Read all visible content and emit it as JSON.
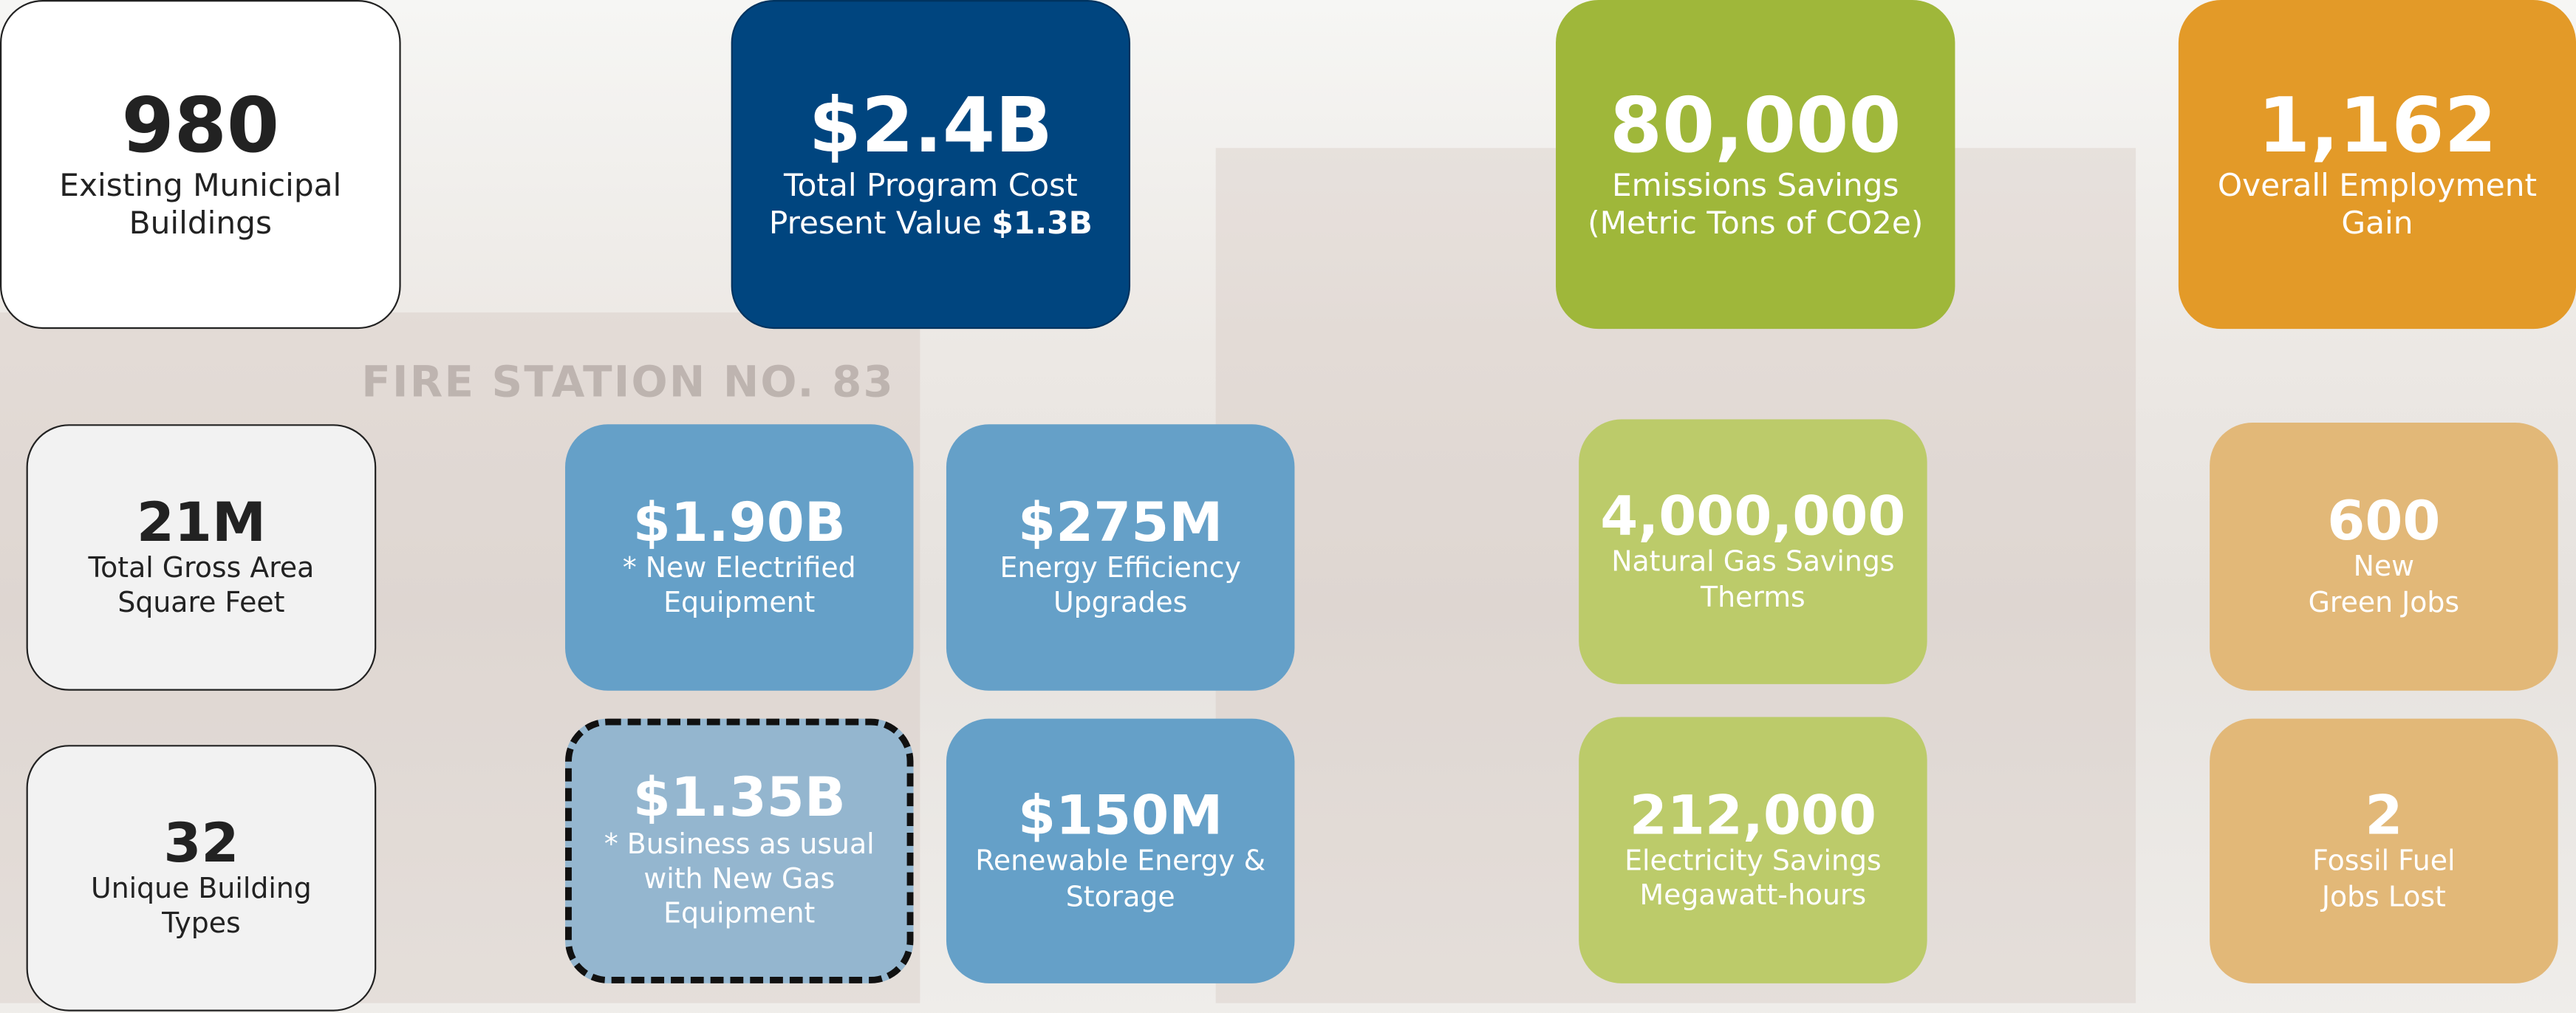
{
  "background": {
    "sign": "FIRE STATION NO. 83"
  },
  "cards": [
    {
      "value": "980",
      "label": [
        "Existing Municipal",
        "Buildings"
      ]
    },
    {
      "value": "$2.4B",
      "label": [
        "Total Program Cost",
        "Present Value"
      ],
      "label_emphasis": "$1.3B"
    },
    {
      "value": "80,000",
      "label": [
        "Emissions Savings",
        "(Metric Tons of CO2e)"
      ]
    },
    {
      "value": "1,162",
      "label": [
        "Overall Employment",
        "Gain"
      ]
    },
    {
      "value": "21M",
      "label": [
        "Total Gross Area",
        "Square Feet"
      ]
    },
    {
      "value": "$1.90B",
      "label": [
        "* New Electrified",
        "Equipment"
      ]
    },
    {
      "value": "$275M",
      "label": [
        "Energy Efficiency",
        "Upgrades"
      ]
    },
    {
      "value": "4,000,000",
      "label": [
        "Natural Gas Savings",
        "Therms"
      ]
    },
    {
      "value": "600",
      "label": [
        "New",
        "Green Jobs"
      ]
    },
    {
      "value": "32",
      "label": [
        "Unique Building",
        "Types"
      ]
    },
    {
      "value": "$1.35B",
      "label": [
        "* Business as usual",
        "with New Gas",
        "Equipment"
      ]
    },
    {
      "value": "$150M",
      "label": [
        "Renewable Energy &",
        "Storage"
      ]
    },
    {
      "value": "212,000",
      "label": [
        "Electricity Savings",
        "Megawatt-hours"
      ]
    },
    {
      "value": "2",
      "label": [
        "Fossil Fuel",
        "Jobs Lost"
      ]
    }
  ]
}
